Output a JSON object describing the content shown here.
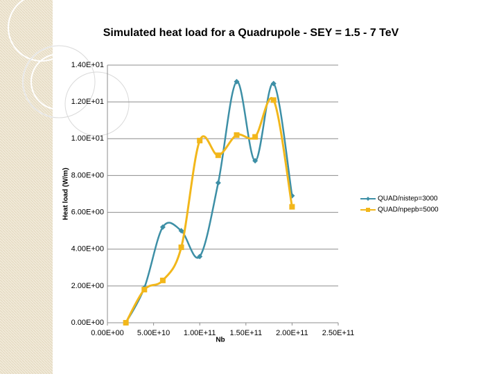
{
  "chart_data": {
    "type": "line",
    "title": "Simulated heat load for a Quadrupole - SEY = 1.5 - 7 TeV",
    "xlabel": "Nb",
    "ylabel": "Heat load (W/m)",
    "x": [
      20000000000,
      40000000000,
      60000000000,
      80000000000,
      100000000000,
      120000000000,
      140000000000,
      160000000000,
      180000000000,
      200000000000
    ],
    "series": [
      {
        "name": "QUAD/nistep=3000",
        "color": "#3d8fa6",
        "marker": "diamond",
        "values": [
          0,
          1.9,
          5.2,
          5.0,
          3.6,
          7.6,
          13.1,
          8.8,
          13.0,
          6.9
        ]
      },
      {
        "name": "QUAD/npepb=5000",
        "color": "#f2b71b",
        "marker": "square",
        "values": [
          0,
          1.8,
          2.3,
          4.1,
          9.9,
          9.1,
          10.2,
          10.1,
          12.1,
          6.3
        ]
      }
    ],
    "xlim": [
      0,
      250000000000
    ],
    "xticks": [
      {
        "value": 0,
        "label": "0.00E+00"
      },
      {
        "value": 50000000000,
        "label": "5.00E+10"
      },
      {
        "value": 100000000000,
        "label": "1.00E+11"
      },
      {
        "value": 150000000000,
        "label": "1.50E+11"
      },
      {
        "value": 200000000000,
        "label": "2.00E+11"
      },
      {
        "value": 250000000000,
        "label": "2.50E+11"
      }
    ],
    "ylim": [
      0,
      14
    ],
    "yticks": [
      {
        "value": 0,
        "label": "0.00E+00"
      },
      {
        "value": 2,
        "label": "2.00E+00"
      },
      {
        "value": 4,
        "label": "4.00E+00"
      },
      {
        "value": 6,
        "label": "6.00E+00"
      },
      {
        "value": 8,
        "label": "8.00E+00"
      },
      {
        "value": 10,
        "label": "1.00E+01"
      },
      {
        "value": 12,
        "label": "1.20E+01"
      },
      {
        "value": 14,
        "label": "1.40E+01"
      }
    ],
    "grid": true,
    "smooth": true,
    "legend": "right"
  }
}
